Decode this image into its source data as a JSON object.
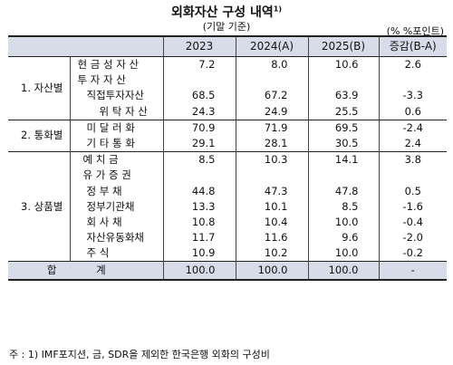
{
  "title": "외화자산 구성 내역",
  "title_sup": "1)",
  "subtitle": "(기말 기준)",
  "unit": "(% %포인트)",
  "columns": [
    "2023",
    "2024(A)",
    "2025(B)",
    "증감(B-A)"
  ],
  "groups": [
    {
      "name": "1. 자산별",
      "rows": [
        {
          "label": "현 금 성 자 산",
          "v2023": "7.2",
          "v2024": "8.0",
          "v2025": "10.6",
          "chg": "2.6"
        },
        {
          "label": "투 자 자 산",
          "v2023": "",
          "v2024": "",
          "v2025": "",
          "chg": ""
        },
        {
          "label": "직접투자자산",
          "v2023": "68.5",
          "v2024": "67.2",
          "v2025": "63.9",
          "chg": "-3.3"
        },
        {
          "label": "위 탁 자 산",
          "v2023": "24.3",
          "v2024": "24.9",
          "v2025": "25.5",
          "chg": "0.6"
        }
      ]
    },
    {
      "name": "2. 통화별",
      "rows": [
        {
          "label": "미 달 러 화",
          "v2023": "70.9",
          "v2024": "71.9",
          "v2025": "69.5",
          "chg": "-2.4"
        },
        {
          "label": "기 타 통 화",
          "v2023": "29.1",
          "v2024": "28.1",
          "v2025": "30.5",
          "chg": "2.4"
        }
      ]
    },
    {
      "name": "3. 상품별",
      "rows": [
        {
          "label": "예 치 금",
          "v2023": "8.5",
          "v2024": "10.3",
          "v2025": "14.1",
          "chg": "3.8"
        },
        {
          "label": "유 가 증 권",
          "v2023": "",
          "v2024": "",
          "v2025": "",
          "chg": ""
        },
        {
          "label": "정 부 채",
          "v2023": "44.8",
          "v2024": "47.3",
          "v2025": "47.8",
          "chg": "0.5"
        },
        {
          "label": "정부기관채",
          "v2023": "13.3",
          "v2024": "10.1",
          "v2025": "8.5",
          "chg": "-1.6"
        },
        {
          "label": "회 사 채",
          "v2023": "10.8",
          "v2024": "10.4",
          "v2025": "10.0",
          "chg": "-0.4"
        },
        {
          "label": "자산유동화채",
          "v2023": "11.7",
          "v2024": "11.6",
          "v2025": "9.6",
          "chg": "-2.0"
        },
        {
          "label": "주 식",
          "v2023": "10.9",
          "v2024": "10.2",
          "v2025": "10.0",
          "chg": "-0.2"
        }
      ]
    }
  ],
  "total": {
    "label": "합 계",
    "v2023": "100.0",
    "v2024": "100.0",
    "v2025": "100.0",
    "chg": "-"
  },
  "note": "주 : 1) IMF포지션, 금, SDR을 제외한 한국은행 외화의 구성비"
}
